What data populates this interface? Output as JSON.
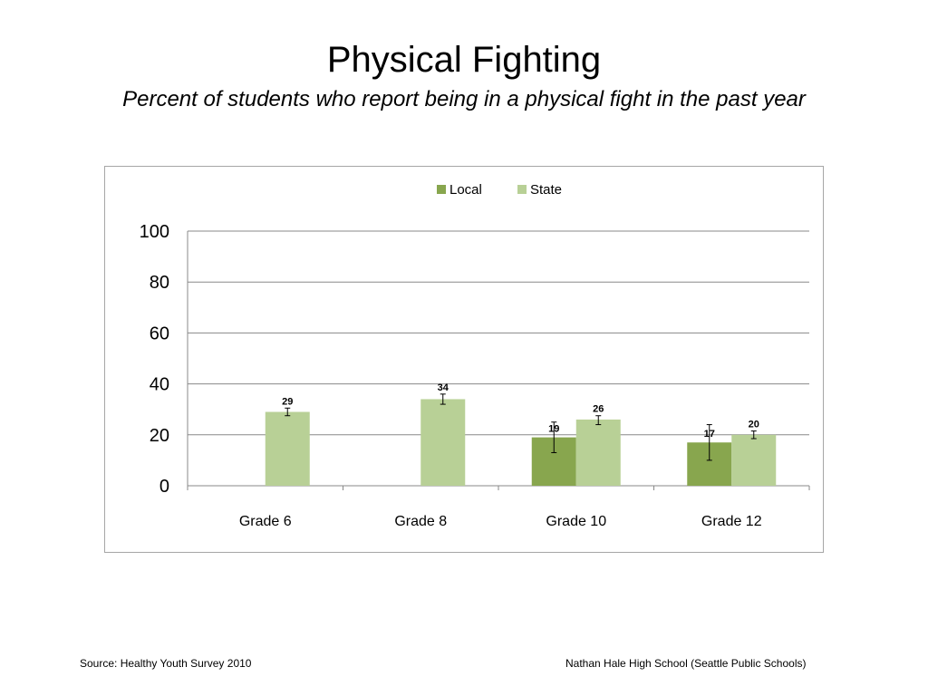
{
  "title": "Physical Fighting",
  "subtitle": "Percent of students who report being in a physical fight in the past year",
  "footer": {
    "source": "Source: Healthy Youth Survey 2010",
    "school": "Nathan Hale High School (Seattle Public Schools)"
  },
  "colors": {
    "local": "#88a64e",
    "state": "#b8d096",
    "grid": "#888888",
    "axis": "#888888"
  },
  "chart_data": {
    "type": "bar",
    "categories": [
      "Grade 6",
      "Grade 8",
      "Grade 10",
      "Grade 12"
    ],
    "series": [
      {
        "name": "Local",
        "values": [
          null,
          null,
          19,
          17
        ],
        "labels": [
          "",
          "",
          "19",
          "17"
        ],
        "error_low": [
          null,
          null,
          13,
          10
        ],
        "error_high": [
          null,
          null,
          25,
          24
        ]
      },
      {
        "name": "State",
        "values": [
          29,
          34,
          26,
          20
        ],
        "labels": [
          "29",
          "34",
          "26",
          "20"
        ],
        "error_low": [
          27.5,
          32,
          24,
          18.5
        ],
        "error_high": [
          30.5,
          36,
          27.5,
          21.5
        ]
      }
    ],
    "ylim": [
      0,
      100
    ],
    "yticks": [
      "0",
      "20",
      "40",
      "60",
      "80",
      "100"
    ],
    "grid": true,
    "legend_position": "top"
  }
}
